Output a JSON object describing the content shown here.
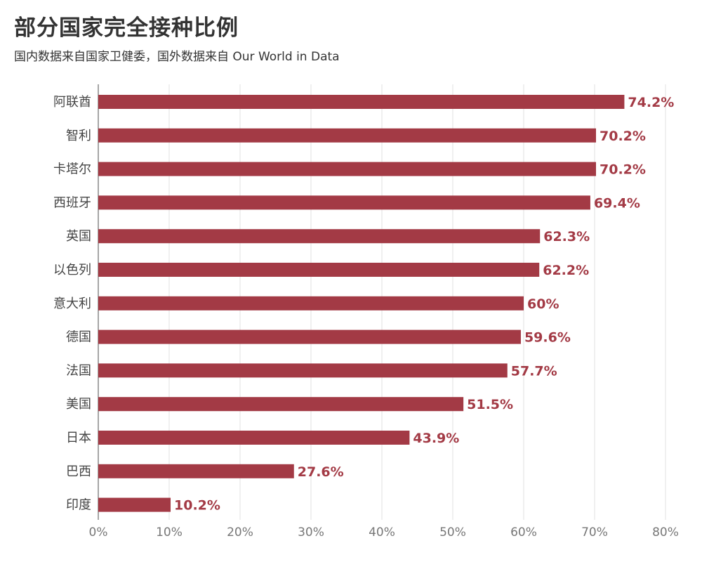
{
  "header": {
    "title": "部分国家完全接种比例",
    "subtitle": "国内数据来自国家卫健委，国外数据来自 Our World in Data"
  },
  "colors": {
    "bar": "#a33a45",
    "value_label": "#a33a45",
    "grid": "#e0e0e0",
    "axis": "#888888"
  },
  "chart_data": {
    "type": "bar",
    "orientation": "horizontal",
    "title": "部分国家完全接种比例",
    "subtitle": "国内数据来自国家卫健委，国外数据来自 Our World in Data",
    "categories": [
      "阿联酋",
      "智利",
      "卡塔尔",
      "西班牙",
      "英国",
      "以色列",
      "意大利",
      "德国",
      "法国",
      "美国",
      "日本",
      "巴西",
      "印度"
    ],
    "values": [
      74.2,
      70.2,
      70.2,
      69.4,
      62.3,
      62.2,
      60,
      59.6,
      57.7,
      51.5,
      43.9,
      27.6,
      10.2
    ],
    "value_labels": [
      "74.2%",
      "70.2%",
      "70.2%",
      "69.4%",
      "62.3%",
      "62.2%",
      "60%",
      "59.6%",
      "57.7%",
      "51.5%",
      "43.9%",
      "27.6%",
      "10.2%"
    ],
    "xlim": [
      0,
      80
    ],
    "xticks": [
      0,
      10,
      20,
      30,
      40,
      50,
      60,
      70,
      80
    ],
    "xtick_labels": [
      "0%",
      "10%",
      "20%",
      "30%",
      "40%",
      "50%",
      "60%",
      "70%",
      "80%"
    ],
    "xlabel": "",
    "ylabel": "",
    "grid": true,
    "legend": "none"
  }
}
